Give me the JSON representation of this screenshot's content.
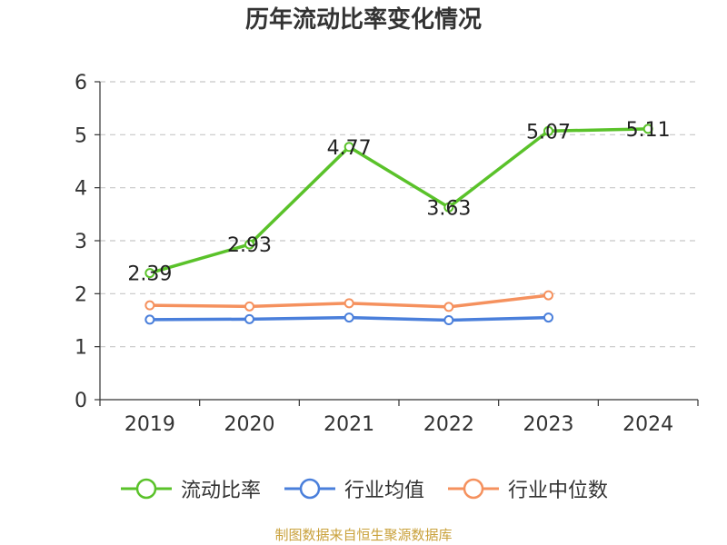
{
  "chart_data": {
    "type": "line",
    "title": "历年流动比率变化情况",
    "categories": [
      "2019",
      "2020",
      "2021",
      "2022",
      "2023",
      "2024"
    ],
    "ylim": [
      0,
      6
    ],
    "yticks": [
      0,
      1,
      2,
      3,
      4,
      5,
      6
    ],
    "grid": true,
    "legend_position": "bottom",
    "series": [
      {
        "name": "流动比率",
        "color": "#5ac22a",
        "values": [
          2.39,
          2.93,
          4.77,
          3.63,
          5.07,
          5.11
        ],
        "labels": [
          "2.39",
          "2.93",
          "4.77",
          "3.63",
          "5.07",
          "5.11"
        ]
      },
      {
        "name": "行业均值",
        "color": "#4a7fdb",
        "values": [
          1.51,
          1.52,
          1.55,
          1.5,
          1.55,
          null
        ]
      },
      {
        "name": "行业中位数",
        "color": "#f5915e",
        "values": [
          1.78,
          1.76,
          1.82,
          1.75,
          1.97,
          null
        ]
      }
    ]
  },
  "source_text": "制图数据来自恒生聚源数据库"
}
